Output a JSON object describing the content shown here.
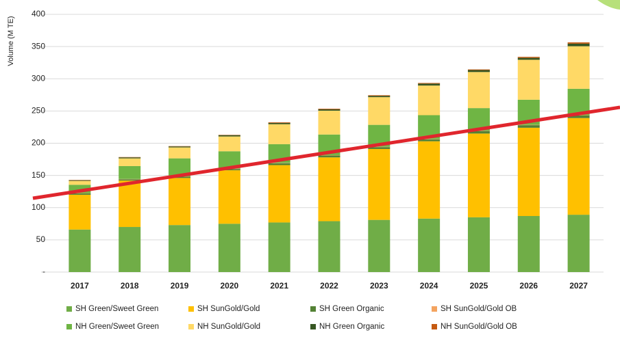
{
  "chart_data": {
    "type": "stacked-bar",
    "y_label": "Volume (M TE)",
    "categories": [
      "2017",
      "2018",
      "2019",
      "2020",
      "2021",
      "2022",
      "2023",
      "2024",
      "2025",
      "2026",
      "2027"
    ],
    "series": [
      {
        "name": "SH Green/Sweet Green",
        "color": "#70ad47",
        "values": [
          66,
          70,
          73,
          75,
          77,
          79,
          81,
          83,
          85,
          87,
          89
        ]
      },
      {
        "name": "SH SunGold/Gold",
        "color": "#ffc000",
        "values": [
          54,
          72,
          73,
          83,
          89,
          99,
          110,
          120,
          130,
          137,
          150
        ]
      },
      {
        "name": "SH Green Organic",
        "color": "#548235",
        "values": [
          2,
          2,
          2,
          2,
          3,
          3,
          3,
          3,
          4,
          4,
          4
        ]
      },
      {
        "name": "SH SunGold/Gold OB",
        "color": "#f4a460",
        "values": [
          0.5,
          0.5,
          0.5,
          0.5,
          0.5,
          0.5,
          0.5,
          0.5,
          0.5,
          0.5,
          0.5
        ]
      },
      {
        "name": "NH Green/Sweet Green",
        "color": "#6fb544",
        "values": [
          13,
          20,
          28,
          27,
          29,
          32,
          34,
          37,
          35,
          39,
          41
        ]
      },
      {
        "name": "NH SunGold/Gold",
        "color": "#ffd966",
        "values": [
          6,
          12,
          17,
          23,
          31,
          37,
          43,
          46,
          56,
          62,
          66
        ]
      },
      {
        "name": "NH Green Organic",
        "color": "#375623",
        "values": [
          1,
          1.5,
          1.5,
          2,
          2,
          2,
          2,
          3,
          3,
          3,
          4
        ]
      },
      {
        "name": "NH SunGold/Gold OB",
        "color": "#c55a11",
        "values": [
          0.5,
          0.5,
          0.5,
          0.5,
          1,
          1,
          1,
          1,
          1,
          1.5,
          2
        ]
      }
    ],
    "ylim": [
      0,
      400
    ],
    "yticks": [
      {
        "value": 0,
        "label": "-"
      },
      50,
      100,
      150,
      200,
      250,
      300,
      350,
      400
    ],
    "grid": true
  }
}
